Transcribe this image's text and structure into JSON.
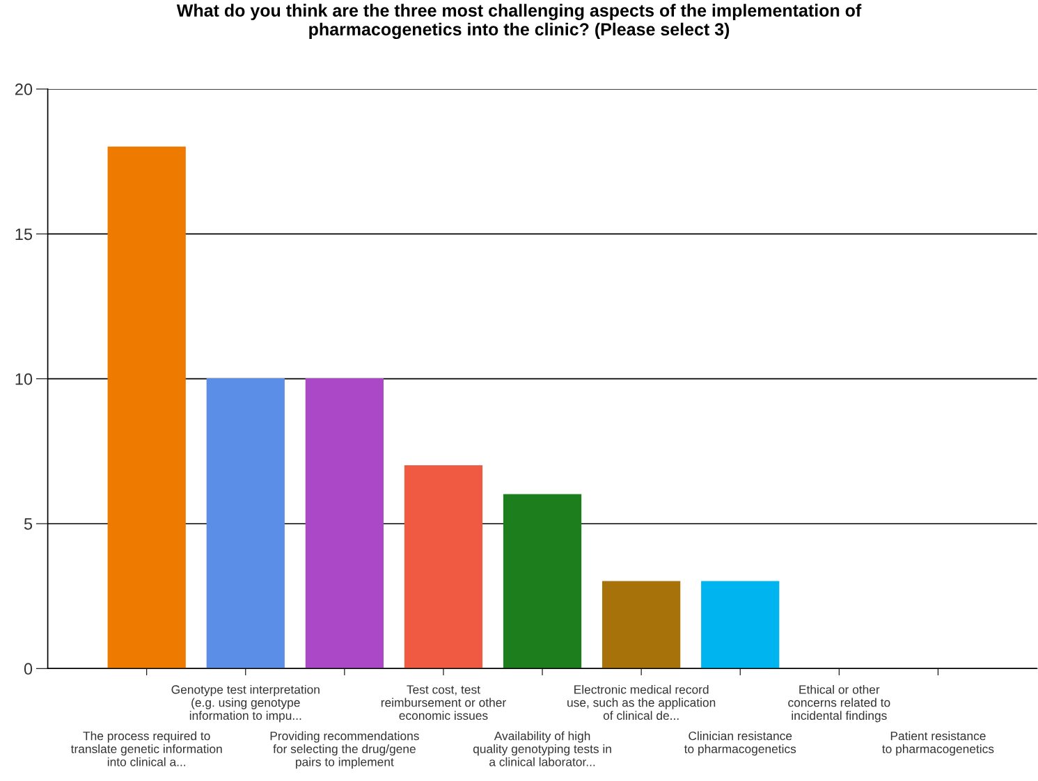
{
  "chart_data": {
    "type": "bar",
    "title": "What do you think are the three most challenging aspects of the implementation of\npharmacogenetics into the clinic? (Please select 3)",
    "categories": [
      "The process required to\ntranslate genetic information\ninto clinical a...",
      "Genotype test interpretation\n(e.g. using genotype\ninformation to impu...",
      "Providing recommendations\nfor selecting the drug/gene\npairs to implement",
      "Test cost, test\nreimbursement or other\neconomic issues",
      "Availability of high\nquality genotyping tests in\na clinical laborator...",
      "Electronic medical record\nuse, such as the application\nof clinical de...",
      "Clinician resistance\nto pharmacogenetics",
      "Ethical or other\nconcerns related to\nincidental findings",
      "Patient resistance\nto pharmacogenetics"
    ],
    "values": [
      18,
      10,
      10,
      7,
      6,
      3,
      3,
      0,
      0
    ],
    "colors": [
      "#ee7a00",
      "#5b8ee6",
      "#aa48c8",
      "#f05a42",
      "#1c7e1c",
      "#a8720a",
      "#00b4f0",
      "#888888",
      "#888888"
    ],
    "ylim": [
      0,
      20
    ],
    "yticks": [
      0,
      5,
      10,
      15,
      20
    ],
    "grid": "y",
    "legend": false
  }
}
